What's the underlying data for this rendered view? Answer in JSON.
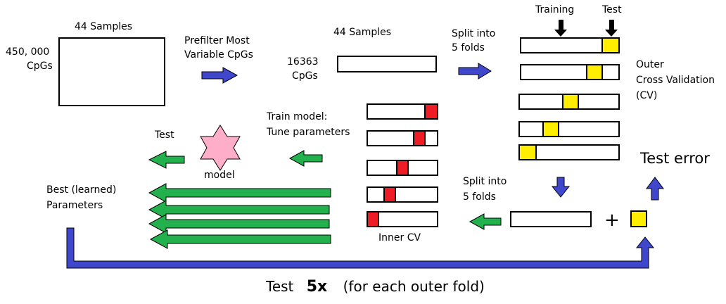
{
  "labels": {
    "samples_1": "44 Samples",
    "cpgs_1_line1": "450, 000",
    "cpgs_1_line2": "CpGs",
    "prefilter_line1": "Prefilter Most",
    "prefilter_line2": "Variable CpGs",
    "samples_2": "44 Samples",
    "cpgs_2_line1": "16363",
    "cpgs_2_line2": "CpGs",
    "split_outer_line1": "Split into",
    "split_outer_line2": "5 folds",
    "training": "Training",
    "test_top": "Test",
    "outer_line1": "Outer",
    "outer_line2": "Cross Validation",
    "outer_line3": "(CV)",
    "test_error": "Test error",
    "train_line1": "Train model:",
    "train_line2": "Tune parameters",
    "test_left": "Test",
    "model": "model",
    "best_line1": "Best (learned)",
    "best_line2": "Parameters",
    "split_inner_line1": "Split into",
    "split_inner_line2": "5 folds",
    "inner_cv": "Inner CV",
    "plus": "+",
    "bottom_test": "Test",
    "bottom_5x": "5x",
    "bottom_rest": "(for each outer fold)"
  },
  "colors": {
    "outer_fold": "#ffee00",
    "inner_fold": "#ee1c24",
    "blue_arrow": "#3f48cc",
    "green_arrow": "#22b14c",
    "model_star": "#ffaec9"
  }
}
